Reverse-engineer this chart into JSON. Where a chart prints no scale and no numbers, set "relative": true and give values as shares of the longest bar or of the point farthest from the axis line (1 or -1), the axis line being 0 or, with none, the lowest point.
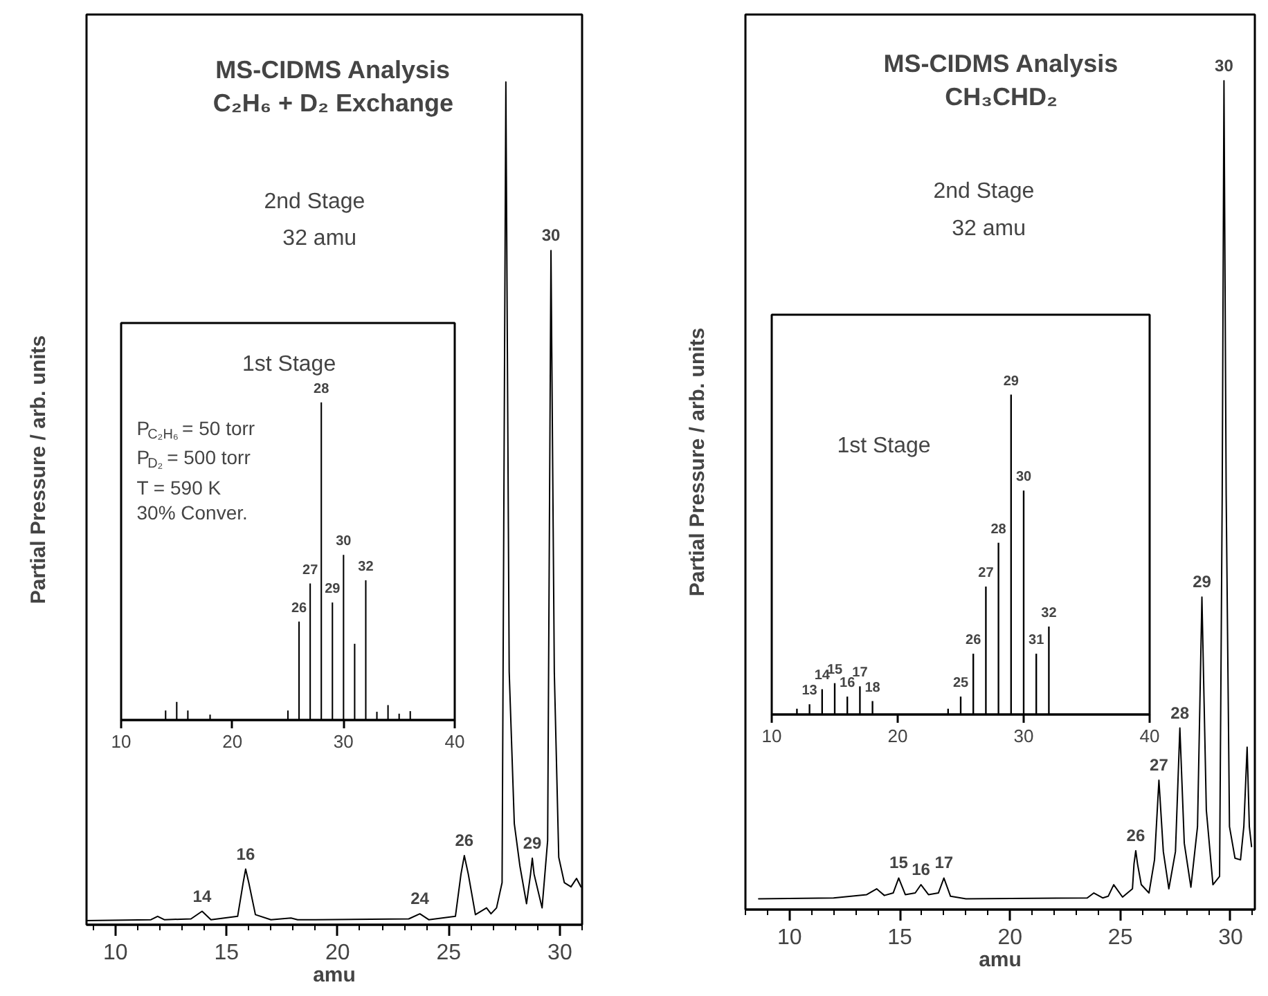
{
  "chart_data": [
    {
      "type": "line",
      "title": "MS-CIDMS Analysis\nC₂H₆ + D₂ Exchange",
      "xlabel": "amu",
      "ylabel": "Partial Pressure / arb. units",
      "relative": true,
      "xlim": [
        8.7,
        31.0
      ],
      "xticks": [
        10,
        15,
        20,
        25,
        30
      ],
      "series": [
        {
          "color": "#000000",
          "x": [
            8.7,
            11.6,
            11.9,
            12.2,
            13.4,
            13.9,
            14.3,
            15.5,
            15.75,
            15.86,
            16.0,
            16.3,
            17.0,
            17.9,
            18.2,
            19.0,
            23.2,
            23.7,
            24.1,
            25.3,
            25.55,
            25.7,
            25.88,
            26.2,
            26.7,
            26.9,
            27.15,
            27.4,
            27.57,
            27.72,
            27.95,
            28.2,
            28.5,
            28.68,
            28.76,
            28.84,
            29.2,
            29.45,
            29.6,
            29.75,
            29.95,
            30.2,
            30.5,
            30.75,
            30.95
          ],
          "values": [
            0.005,
            0.006,
            0.01,
            0.006,
            0.007,
            0.016,
            0.006,
            0.01,
            0.05,
            0.066,
            0.05,
            0.012,
            0.006,
            0.008,
            0.006,
            0.006,
            0.007,
            0.013,
            0.006,
            0.01,
            0.06,
            0.082,
            0.06,
            0.012,
            0.02,
            0.013,
            0.02,
            0.05,
            1.0,
            0.3,
            0.12,
            0.07,
            0.025,
            0.06,
            0.079,
            0.06,
            0.02,
            0.1,
            0.8,
            0.3,
            0.08,
            0.05,
            0.045,
            0.055,
            0.045
          ]
        }
      ],
      "annotations": [
        "2nd Stage",
        "32 amu",
        {
          "text": "14",
          "x": 13.9,
          "y": 0.016
        },
        {
          "text": "16",
          "x": 15.86,
          "y": 0.066
        },
        {
          "text": "24",
          "x": 23.7,
          "y": 0.013
        },
        {
          "text": "26",
          "x": 25.7,
          "y": 0.082
        },
        {
          "text": "29",
          "x": 28.76,
          "y": 0.079
        },
        {
          "text": "30",
          "x": 29.6,
          "y": 0.8
        }
      ]
    },
    {
      "type": "bar",
      "title": "1st Stage",
      "relative": true,
      "xlim": [
        10,
        40
      ],
      "xticks": [
        10,
        20,
        30,
        40
      ],
      "series": [
        {
          "color": "#000000",
          "x": [
            14,
            15,
            16,
            18,
            25,
            26,
            27,
            28,
            29,
            30,
            31,
            32,
            33,
            34,
            35,
            36
          ],
          "values": [
            0.03,
            0.057,
            0.03,
            0.017,
            0.03,
            0.31,
            0.43,
            1.0,
            0.37,
            0.52,
            0.24,
            0.44,
            0.026,
            0.047,
            0.02,
            0.028
          ]
        }
      ],
      "annotations": [
        "P$_{C₂H₆}$ = 50 torr",
        "P$_{D₂}$ = 500 torr",
        "T = 590 K",
        "30% Conver.",
        {
          "text": "26",
          "x": 26,
          "y": 0.31
        },
        {
          "text": "27",
          "x": 27,
          "y": 0.43
        },
        {
          "text": "28",
          "x": 28,
          "y": 1.0
        },
        {
          "text": "29",
          "x": 29,
          "y": 0.37
        },
        {
          "text": "30",
          "x": 30,
          "y": 0.52
        },
        {
          "text": "32",
          "x": 32,
          "y": 0.44
        }
      ]
    },
    {
      "type": "line",
      "title": "MS-CIDMS Analysis\nCH₃CHD₂",
      "xlabel": "amu",
      "ylabel": "Partial Pressure / arb. units",
      "relative": true,
      "xlim": [
        8.0,
        31.1
      ],
      "xticks": [
        10,
        15,
        20,
        25,
        30
      ],
      "series": [
        {
          "color": "#000000",
          "x": [
            8.6,
            12.0,
            13.5,
            13.95,
            14.3,
            14.7,
            14.95,
            15.25,
            15.7,
            15.96,
            16.3,
            16.75,
            17.0,
            17.3,
            18.0,
            23.5,
            23.8,
            24.2,
            24.45,
            24.7,
            25.1,
            25.55,
            25.62,
            25.7,
            25.78,
            25.95,
            26.3,
            26.55,
            26.75,
            26.95,
            27.2,
            27.5,
            27.7,
            27.9,
            28.2,
            28.5,
            28.7,
            28.9,
            29.2,
            29.5,
            29.62,
            29.7,
            29.8,
            29.95,
            30.2,
            30.45,
            30.6,
            30.75,
            30.85,
            30.95
          ],
          "values": [
            0.013,
            0.014,
            0.018,
            0.025,
            0.017,
            0.02,
            0.038,
            0.018,
            0.02,
            0.03,
            0.018,
            0.02,
            0.038,
            0.016,
            0.013,
            0.014,
            0.02,
            0.014,
            0.016,
            0.03,
            0.015,
            0.025,
            0.055,
            0.071,
            0.055,
            0.03,
            0.02,
            0.06,
            0.156,
            0.07,
            0.025,
            0.07,
            0.219,
            0.08,
            0.027,
            0.1,
            0.377,
            0.12,
            0.03,
            0.04,
            0.5,
            1.0,
            0.5,
            0.1,
            0.062,
            0.06,
            0.1,
            0.196,
            0.1,
            0.076
          ]
        }
      ],
      "annotations": [
        "2nd Stage",
        "32 amu",
        {
          "text": "15",
          "x": 14.95,
          "y": 0.038
        },
        {
          "text": "16",
          "x": 15.96,
          "y": 0.03
        },
        {
          "text": "17",
          "x": 17.0,
          "y": 0.038
        },
        {
          "text": "26",
          "x": 25.7,
          "y": 0.071
        },
        {
          "text": "27",
          "x": 26.75,
          "y": 0.156
        },
        {
          "text": "28",
          "x": 27.7,
          "y": 0.219
        },
        {
          "text": "29",
          "x": 28.7,
          "y": 0.377
        },
        {
          "text": "30",
          "x": 29.7,
          "y": 1.0
        }
      ]
    },
    {
      "type": "bar",
      "title": "1st Stage",
      "relative": true,
      "xlim": [
        10,
        40
      ],
      "xticks": [
        10,
        20,
        30,
        40
      ],
      "series": [
        {
          "color": "#000000",
          "x": [
            12,
            13,
            14,
            15,
            16,
            17,
            18,
            24,
            25,
            26,
            27,
            28,
            29,
            30,
            31,
            32
          ],
          "values": [
            0.018,
            0.032,
            0.079,
            0.098,
            0.056,
            0.088,
            0.042,
            0.018,
            0.056,
            0.19,
            0.4,
            0.537,
            1.0,
            0.7,
            0.19,
            0.275
          ]
        }
      ],
      "annotations": [
        {
          "text": "13",
          "x": 13,
          "y": 0.032
        },
        {
          "text": "14",
          "x": 14,
          "y": 0.079
        },
        {
          "text": "15",
          "x": 15,
          "y": 0.098
        },
        {
          "text": "16",
          "x": 16,
          "y": 0.056
        },
        {
          "text": "17",
          "x": 17,
          "y": 0.088
        },
        {
          "text": "18",
          "x": 18,
          "y": 0.042
        },
        {
          "text": "25",
          "x": 25,
          "y": 0.056
        },
        {
          "text": "26",
          "x": 26,
          "y": 0.19
        },
        {
          "text": "27",
          "x": 27,
          "y": 0.4
        },
        {
          "text": "28",
          "x": 28,
          "y": 0.537
        },
        {
          "text": "29",
          "x": 29,
          "y": 1.0
        },
        {
          "text": "30",
          "x": 30,
          "y": 0.7
        },
        {
          "text": "31",
          "x": 31,
          "y": 0.19
        },
        {
          "text": "32",
          "x": 32,
          "y": 0.275
        }
      ]
    }
  ]
}
